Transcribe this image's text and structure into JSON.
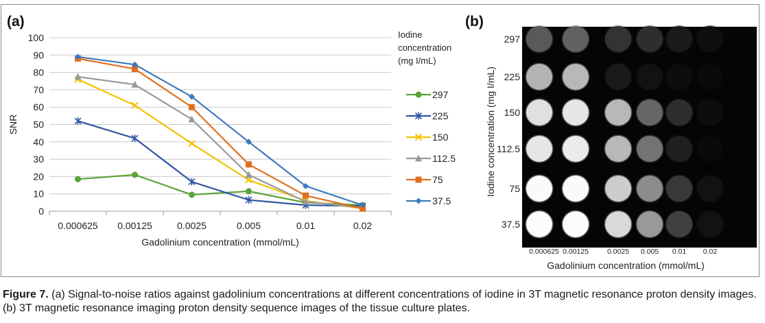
{
  "figure": {
    "caption_label": "Figure 7.",
    "caption_text": " (a) Signal-to-noise ratios against gadolinium concentrations at different concentrations of iodine in 3T magnetic resonance proton density images. (b) 3T magnetic resonance imaging proton density sequence images of the tissue culture plates."
  },
  "chart_data": [
    {
      "panel": "(a)",
      "type": "line",
      "xlabel": "Gadolinium concentration (mmol/mL)",
      "ylabel": "SNR",
      "categories": [
        "0.000625",
        "0.00125",
        "0.0025",
        "0.005",
        "0.01",
        "0.02"
      ],
      "ylim": [
        0,
        100
      ],
      "yticks": [
        0,
        10,
        20,
        30,
        40,
        50,
        60,
        70,
        80,
        90,
        100
      ],
      "grid": true,
      "legend_title": "Iodine concentration (mg I/mL)",
      "legend_title_lines": [
        "Iodine",
        "concentration",
        "(mg I/mL)"
      ],
      "legend_position": "right",
      "series": [
        {
          "name": "297",
          "color": "#5aa337",
          "marker": "circle",
          "values": [
            18.5,
            21,
            9.5,
            11.5,
            5,
            3.5
          ]
        },
        {
          "name": "225",
          "color": "#2f55a4",
          "marker": "star",
          "values": [
            52,
            42,
            17,
            6.5,
            3.5,
            3
          ]
        },
        {
          "name": "150",
          "color": "#f2c200",
          "marker": "x",
          "values": [
            76,
            61,
            39,
            18,
            6,
            1.5
          ]
        },
        {
          "name": "112.5",
          "color": "#9a9a9a",
          "marker": "triangle",
          "values": [
            77.5,
            73,
            53,
            21,
            5.5,
            2
          ]
        },
        {
          "name": "75",
          "color": "#e07020",
          "marker": "square",
          "values": [
            88,
            82,
            60,
            27,
            9,
            1.5
          ]
        },
        {
          "name": "37.5",
          "color": "#3c79bd",
          "marker": "diamond",
          "values": [
            89,
            84.5,
            66,
            40,
            14.5,
            3.5
          ]
        }
      ]
    },
    {
      "panel": "(b)",
      "type": "heatmap",
      "xlabel": "Gadolinium concentration (mmol/mL)",
      "ylabel": "Iodine concentration (mg I/mL)",
      "x": [
        "0.000625",
        "0.00125",
        "0.0025",
        "0.005",
        "0.01",
        "0.02"
      ],
      "y": [
        "297",
        "225",
        "150",
        "112.5",
        "75",
        "37.5"
      ],
      "intensity_note": "",
      "values": [
        [
          0.35,
          0.38,
          0.2,
          0.18,
          0.1,
          0.06
        ],
        [
          0.7,
          0.72,
          0.1,
          0.07,
          0.05,
          0.04
        ],
        [
          0.88,
          0.9,
          0.72,
          0.4,
          0.18,
          0.05
        ],
        [
          0.9,
          0.92,
          0.72,
          0.45,
          0.12,
          0.04
        ],
        [
          0.98,
          0.98,
          0.8,
          0.55,
          0.22,
          0.07
        ],
        [
          0.99,
          0.99,
          0.85,
          0.6,
          0.25,
          0.07
        ]
      ]
    }
  ]
}
